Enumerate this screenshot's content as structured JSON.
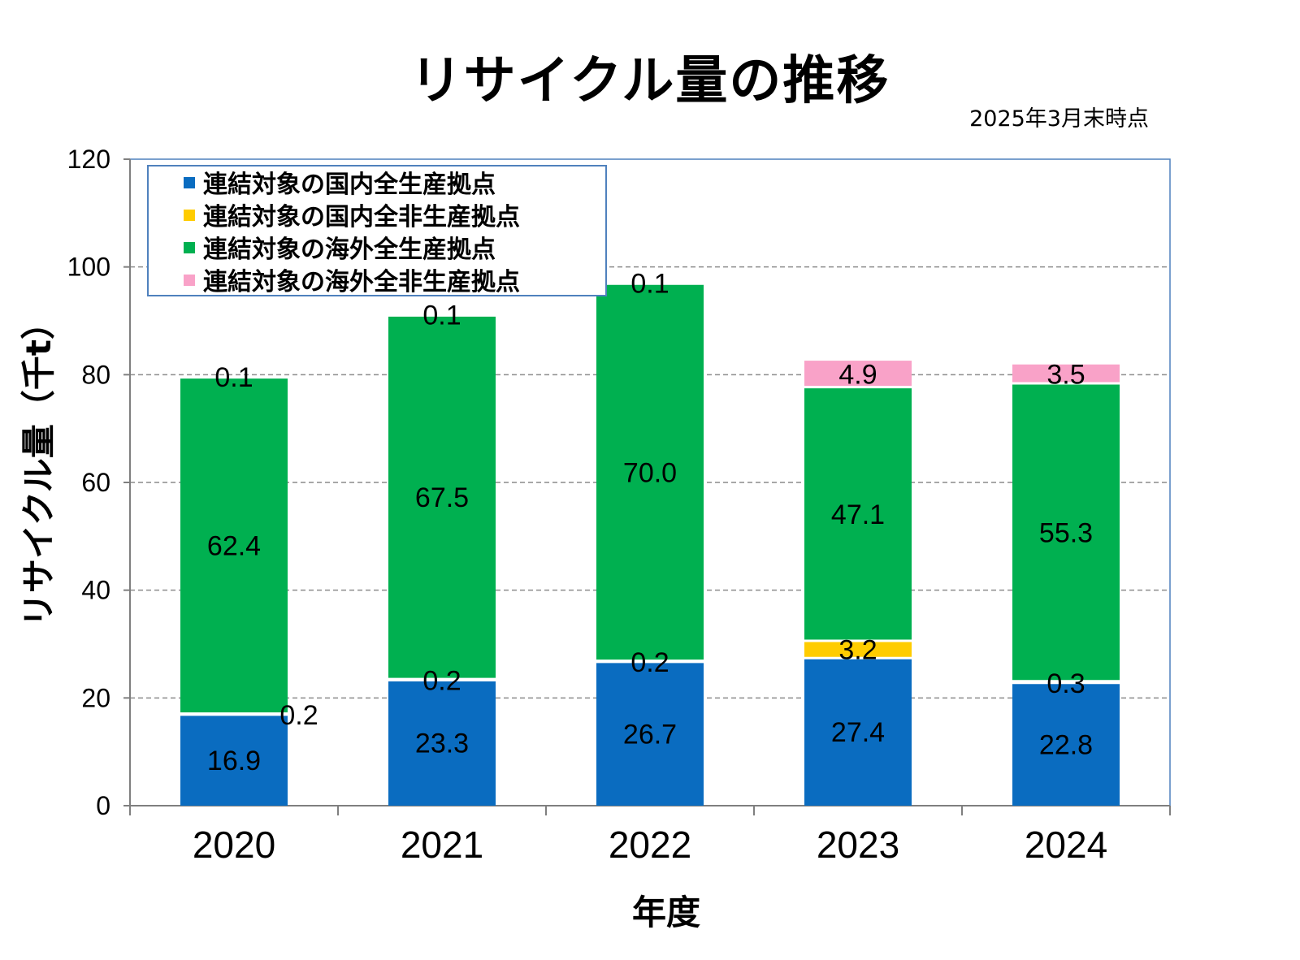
{
  "title": "リサイクル量の推移",
  "as_of": "2025年3月末時点",
  "chart_data": {
    "type": "bar",
    "stacked": true,
    "title": "リサイクル量の推移",
    "xlabel": "年度",
    "ylabel": "リサイクル量（千t）",
    "ylim": [
      0,
      120
    ],
    "yticks": [
      0,
      20,
      40,
      60,
      80,
      100,
      120
    ],
    "grid": true,
    "legend_position": "top-left",
    "categories": [
      "2020",
      "2021",
      "2022",
      "2023",
      "2024"
    ],
    "series": [
      {
        "name": "連結対象の国内全生産拠点",
        "color": "#0a6cc0",
        "values": [
          16.9,
          23.3,
          26.7,
          27.4,
          22.8
        ],
        "labels": [
          "16.9",
          "23.3",
          "26.7",
          "27.4",
          "22.8"
        ]
      },
      {
        "name": "連結対象の国内全非生産拠点",
        "color": "#ffcc00",
        "values": [
          0.2,
          0.2,
          0.2,
          3.2,
          0.3
        ],
        "labels": [
          "0.2",
          "0.2",
          "0.2",
          "3.2",
          "0.3"
        ]
      },
      {
        "name": "連結対象の海外全生産拠点",
        "color": "#00b050",
        "values": [
          62.4,
          67.5,
          70.0,
          47.1,
          55.3
        ],
        "labels": [
          "62.4",
          "67.5",
          "70.0",
          "47.1",
          "55.3"
        ]
      },
      {
        "name": "連結対象の海外全非生産拠点",
        "color": "#f9a2c8",
        "values": [
          0.1,
          0.1,
          0.1,
          4.9,
          3.5
        ],
        "labels": [
          "0.1",
          "0.1",
          "0.1",
          "4.9",
          "3.5"
        ]
      }
    ]
  }
}
